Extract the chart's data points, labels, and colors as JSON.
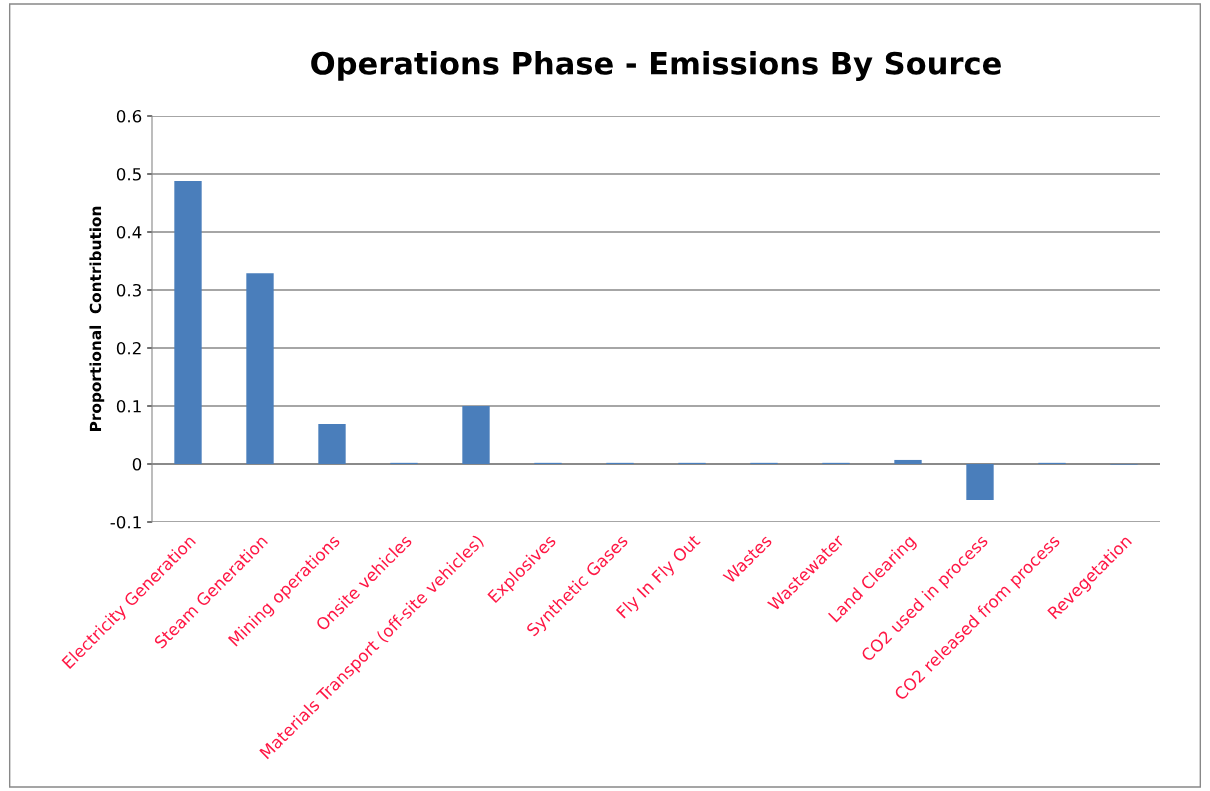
{
  "chart_data": {
    "type": "bar",
    "title": "Operations Phase - Emissions By Source",
    "ylabel": "Proportional  Contribution",
    "categories": [
      "Electricity Generation",
      "Steam Generation",
      "Mining operations",
      "Onsite vehicles",
      "Materials Transport (off-site vehicles)",
      "Explosives",
      "Synthetic Gases",
      "Fly In Fly Out",
      "Wastes",
      "Wastewater",
      "Land Clearing",
      "CO2 used in process",
      "CO2 released from process",
      "Revegetation"
    ],
    "values": [
      0.488,
      0.329,
      0.069,
      0.002,
      0.1,
      0.002,
      0.002,
      0.002,
      0.002,
      0.002,
      0.007,
      -0.062,
      0.002,
      -0.001
    ],
    "color": "#4a7ebb",
    "ylim": [
      -0.1,
      0.6
    ],
    "yticks": [
      -0.1,
      0,
      0.1,
      0.2,
      0.3,
      0.4,
      0.5,
      0.6
    ],
    "grid": "y",
    "legend": false
  }
}
